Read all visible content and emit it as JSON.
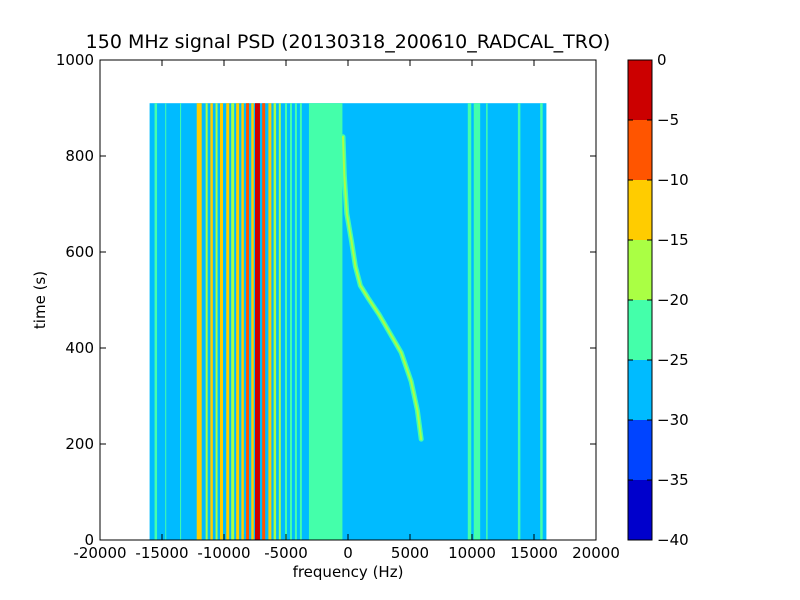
{
  "chart_data": {
    "type": "heatmap",
    "title": "150 MHz signal PSD (20130318_200610_RADCAL_TRO)",
    "xlabel": "frequency (Hz)",
    "ylabel": "time (s)",
    "xlim": [
      -20000,
      20000
    ],
    "ylim": [
      0,
      1000
    ],
    "x_ticks": [
      -20000,
      -15000,
      -10000,
      -5000,
      0,
      5000,
      10000,
      15000,
      20000
    ],
    "y_ticks": [
      0,
      200,
      400,
      600,
      800,
      1000
    ],
    "data_extent": {
      "x": [
        -16000,
        16000
      ],
      "y": [
        0,
        910
      ]
    },
    "colorbar": {
      "range": [
        -40,
        0
      ],
      "levels": [
        -40,
        -35,
        -30,
        -25,
        -20,
        -15,
        -10,
        -5,
        0
      ],
      "colors": [
        "#0000cc",
        "#0044ff",
        "#00bbff",
        "#44ffaa",
        "#aaff44",
        "#ffcc00",
        "#ff5500",
        "#cc0000"
      ]
    },
    "background_level": -27,
    "bands": [
      {
        "x": -15500,
        "width": 200,
        "level": -22
      },
      {
        "x": -14700,
        "width": 80,
        "level": -24
      },
      {
        "x": -13500,
        "width": 80,
        "level": -24
      },
      {
        "x": -12000,
        "width": 400,
        "level": -12
      },
      {
        "x": -11400,
        "width": 160,
        "level": -17
      },
      {
        "x": -11000,
        "width": 200,
        "level": -13
      },
      {
        "x": -10600,
        "width": 160,
        "level": -17
      },
      {
        "x": -10200,
        "width": 240,
        "level": -12
      },
      {
        "x": -9700,
        "width": 240,
        "level": -14
      },
      {
        "x": -9300,
        "width": 240,
        "level": -17
      },
      {
        "x": -8900,
        "width": 240,
        "level": -12
      },
      {
        "x": -8500,
        "width": 200,
        "level": -13
      },
      {
        "x": -8100,
        "width": 240,
        "level": -9
      },
      {
        "x": -7700,
        "width": 200,
        "level": -11
      },
      {
        "x": -7300,
        "width": 400,
        "level": -3
      },
      {
        "x": -6800,
        "width": 240,
        "level": -9
      },
      {
        "x": -6300,
        "width": 240,
        "level": -15
      },
      {
        "x": -5900,
        "width": 200,
        "level": -17
      },
      {
        "x": -5500,
        "width": 160,
        "level": -20
      },
      {
        "x": -5000,
        "width": 160,
        "level": -21
      },
      {
        "x": -4600,
        "width": 160,
        "level": -22
      },
      {
        "x": -4200,
        "width": 160,
        "level": -22
      },
      {
        "x": -3800,
        "width": 160,
        "level": -22
      },
      {
        "x": -1800,
        "width": 2700,
        "level": -22
      },
      {
        "x": 9800,
        "width": 280,
        "level": -21
      },
      {
        "x": 10400,
        "width": 520,
        "level": -22
      },
      {
        "x": 11200,
        "width": 120,
        "level": -23
      },
      {
        "x": 13800,
        "width": 200,
        "level": -22
      },
      {
        "x": 15600,
        "width": 200,
        "level": -23
      }
    ],
    "chirp_track": {
      "level": -17,
      "points": [
        {
          "x": 5900,
          "y": 210
        },
        {
          "x": 5600,
          "y": 270
        },
        {
          "x": 5100,
          "y": 330
        },
        {
          "x": 4300,
          "y": 390
        },
        {
          "x": 3400,
          "y": 430
        },
        {
          "x": 2500,
          "y": 470
        },
        {
          "x": 1600,
          "y": 505
        },
        {
          "x": 1000,
          "y": 530
        },
        {
          "x": 600,
          "y": 570
        },
        {
          "x": 300,
          "y": 620
        },
        {
          "x": -100,
          "y": 680
        },
        {
          "x": -300,
          "y": 760
        },
        {
          "x": -400,
          "y": 840
        }
      ]
    }
  }
}
